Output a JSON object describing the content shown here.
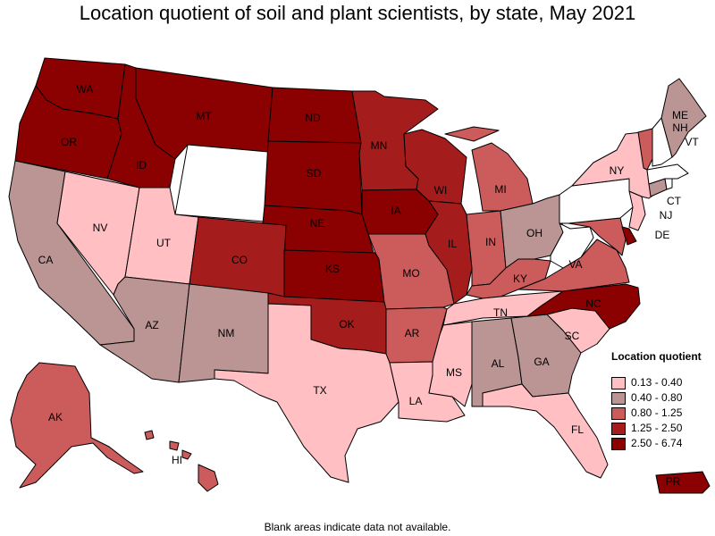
{
  "title": "Location quotient of soil and plant scientists, by state, May 2021",
  "note": "Blank areas indicate data not available.",
  "legend": {
    "title": "Location quotient",
    "items": [
      {
        "label": "0.13 - 0.40",
        "color": "#ffbfc3"
      },
      {
        "label": "0.40 - 0.80",
        "color": "#bb9494"
      },
      {
        "label": "0.80 - 1.25",
        "color": "#cc5b5b"
      },
      {
        "label": "1.25 - 2.50",
        "color": "#a51c1c"
      },
      {
        "label": "2.50 - 6.74",
        "color": "#8b0000"
      }
    ]
  },
  "no_data_color": "#ffffff",
  "states": [
    {
      "code": "WA",
      "bin": 4
    },
    {
      "code": "OR",
      "bin": 4
    },
    {
      "code": "ID",
      "bin": 4
    },
    {
      "code": "MT",
      "bin": 4
    },
    {
      "code": "ND",
      "bin": 4
    },
    {
      "code": "SD",
      "bin": 4
    },
    {
      "code": "NE",
      "bin": 4
    },
    {
      "code": "KS",
      "bin": 4
    },
    {
      "code": "IA",
      "bin": 4
    },
    {
      "code": "NC",
      "bin": 4
    },
    {
      "code": "PR",
      "bin": 4
    },
    {
      "code": "DE",
      "bin": 4
    },
    {
      "code": "MN",
      "bin": 3
    },
    {
      "code": "WI",
      "bin": 3
    },
    {
      "code": "IL",
      "bin": 3
    },
    {
      "code": "CO",
      "bin": 3
    },
    {
      "code": "OK",
      "bin": 3
    },
    {
      "code": "MI",
      "bin": 2
    },
    {
      "code": "IN",
      "bin": 2
    },
    {
      "code": "KY",
      "bin": 2
    },
    {
      "code": "VA",
      "bin": 2
    },
    {
      "code": "MO",
      "bin": 2
    },
    {
      "code": "AR",
      "bin": 2
    },
    {
      "code": "AK",
      "bin": 2
    },
    {
      "code": "HI",
      "bin": 2
    },
    {
      "code": "VT",
      "bin": 2
    },
    {
      "code": "MD",
      "bin": 2
    },
    {
      "code": "CA",
      "bin": 1
    },
    {
      "code": "AZ",
      "bin": 1
    },
    {
      "code": "NM",
      "bin": 1
    },
    {
      "code": "OH",
      "bin": 1
    },
    {
      "code": "AL",
      "bin": 1
    },
    {
      "code": "GA",
      "bin": 1
    },
    {
      "code": "ME",
      "bin": 1
    },
    {
      "code": "CT",
      "bin": 1
    },
    {
      "code": "NV",
      "bin": 0
    },
    {
      "code": "UT",
      "bin": 0
    },
    {
      "code": "TX",
      "bin": 0
    },
    {
      "code": "LA",
      "bin": 0
    },
    {
      "code": "MS",
      "bin": 0
    },
    {
      "code": "TN",
      "bin": 0
    },
    {
      "code": "SC",
      "bin": 0
    },
    {
      "code": "FL",
      "bin": 0
    },
    {
      "code": "NY",
      "bin": 0
    },
    {
      "code": "NJ",
      "bin": 0
    },
    {
      "code": "WY",
      "bin": null
    },
    {
      "code": "PA",
      "bin": null
    },
    {
      "code": "WV",
      "bin": null
    },
    {
      "code": "NH",
      "bin": null
    },
    {
      "code": "MA",
      "bin": null
    },
    {
      "code": "RI",
      "bin": null
    }
  ]
}
